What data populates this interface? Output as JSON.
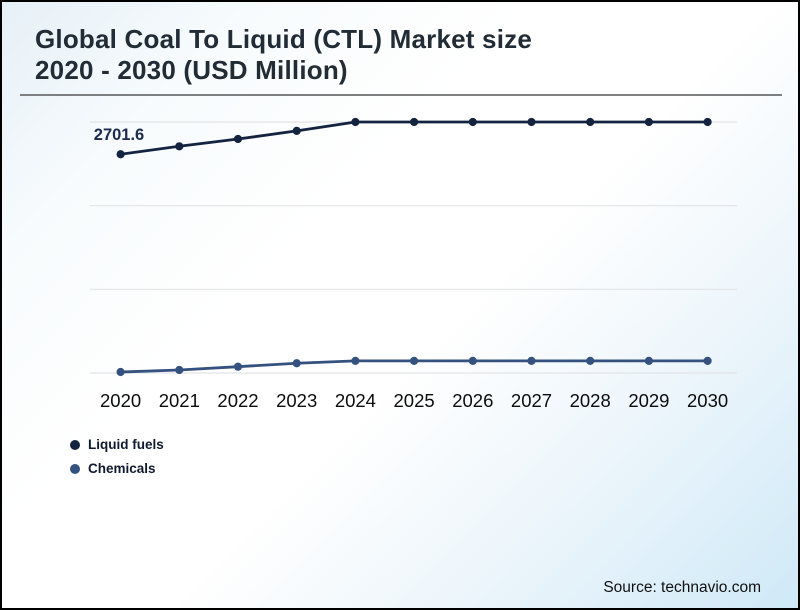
{
  "header": {
    "title_line1": "Global Coal To Liquid (CTL) Market size",
    "title_line2": "2020 - 2030 (USD Million)"
  },
  "chart_data": {
    "type": "line",
    "title": "Global Coal To Liquid (CTL) Market size 2020 - 2030 (USD Million)",
    "categories": [
      "2020",
      "2021",
      "2022",
      "2023",
      "2024",
      "2025",
      "2026",
      "2027",
      "2028",
      "2029",
      "2030"
    ],
    "series": [
      {
        "name": "Liquid fuels",
        "color": "#142440",
        "values": [
          2701.6,
          2800,
          2890,
          2990,
          3100,
          3100,
          3100,
          3100,
          3100,
          3100,
          3100
        ]
      },
      {
        "name": "Chemicals",
        "color": "#35517f",
        "values": [
          12,
          37,
          78,
          120,
          150,
          150,
          150,
          150,
          150,
          150,
          150
        ]
      }
    ],
    "ylim": [
      0,
      3100
    ],
    "grid": {
      "horizontal_lines": 4
    },
    "legend_position": "bottom-left",
    "annotations": [
      {
        "series": "Liquid fuels",
        "category": "2020",
        "text": "2701.6"
      }
    ]
  },
  "footer": {
    "source": "Source: technavio.com"
  }
}
